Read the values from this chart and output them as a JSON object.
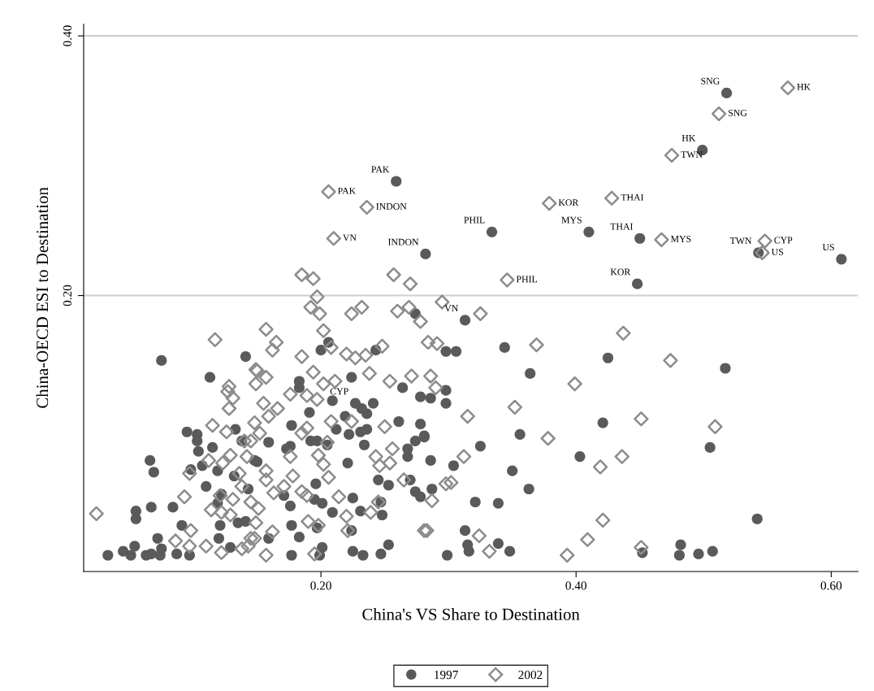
{
  "chart_data": {
    "type": "scatter",
    "xlabel": "China's VS Share to Destination",
    "ylabel": "China-OECD ESI to Destination",
    "xlim": [
      0.014,
      0.621
    ],
    "ylim": [
      -0.0125,
      0.409
    ],
    "xticks": [
      {
        "value": 0.2,
        "label": "0.20"
      },
      {
        "value": 0.4,
        "label": "0.40"
      },
      {
        "value": 0.6,
        "label": "0.60"
      }
    ],
    "yticks": [
      {
        "value": 0.2,
        "label": "0.20"
      },
      {
        "value": 0.4,
        "label": "0.40"
      }
    ],
    "grid": "y",
    "legend": "bottom",
    "series": [
      {
        "name": "1997",
        "color": "#5a5a5a",
        "marker": "circle",
        "x": [
          0.518,
          0.499,
          0.259,
          0.334,
          0.41,
          0.45,
          0.282,
          0.543,
          0.608,
          0.448,
          0.313,
          0.227,
          0.298,
          0.306,
          0.344,
          0.425,
          0.517,
          0.364,
          0.298,
          0.286,
          0.298,
          0.421,
          0.356,
          0.325,
          0.281,
          0.505,
          0.286,
          0.304,
          0.35,
          0.403,
          0.363,
          0.287,
          0.321,
          0.339,
          0.542,
          0.313,
          0.315,
          0.339,
          0.316,
          0.348,
          0.299,
          0.452,
          0.482,
          0.481,
          0.496,
          0.507,
          0.075,
          0.141,
          0.113,
          0.095,
          0.103,
          0.103,
          0.104,
          0.115,
          0.066,
          0.069,
          0.098,
          0.107,
          0.119,
          0.132,
          0.133,
          0.138,
          0.11,
          0.122,
          0.143,
          0.119,
          0.067,
          0.055,
          0.055,
          0.084,
          0.091,
          0.121,
          0.12,
          0.135,
          0.141,
          0.072,
          0.054,
          0.045,
          0.051,
          0.033,
          0.063,
          0.067,
          0.075,
          0.074,
          0.087,
          0.097,
          0.129,
          0.148,
          0.274,
          0.2,
          0.206,
          0.243,
          0.224,
          0.183,
          0.183,
          0.209,
          0.191,
          0.241,
          0.236,
          0.232,
          0.219,
          0.261,
          0.264,
          0.278,
          0.278,
          0.177,
          0.212,
          0.222,
          0.231,
          0.236,
          0.159,
          0.192,
          0.197,
          0.205,
          0.234,
          0.173,
          0.176,
          0.268,
          0.268,
          0.274,
          0.281,
          0.15,
          0.221,
          0.245,
          0.253,
          0.27,
          0.274,
          0.278,
          0.196,
          0.195,
          0.201,
          0.171,
          0.176,
          0.225,
          0.209,
          0.231,
          0.248,
          0.247,
          0.177,
          0.183,
          0.159,
          0.197,
          0.224,
          0.201,
          0.199,
          0.177,
          0.225,
          0.233,
          0.247,
          0.253
        ],
        "values": [
          0.356,
          0.312,
          0.288,
          0.249,
          0.249,
          0.244,
          0.232,
          0.233,
          0.228,
          0.209,
          0.181,
          0.117,
          0.157,
          0.157,
          0.16,
          0.152,
          0.144,
          0.14,
          0.127,
          0.121,
          0.117,
          0.102,
          0.093,
          0.084,
          0.091,
          0.083,
          0.073,
          0.069,
          0.065,
          0.076,
          0.051,
          0.051,
          0.041,
          0.04,
          0.028,
          0.019,
          0.008,
          0.009,
          0.003,
          0.003,
          0.0,
          0.002,
          0.008,
          0.0,
          0.001,
          0.003,
          0.15,
          0.153,
          0.137,
          0.095,
          0.093,
          0.088,
          0.08,
          0.083,
          0.073,
          0.064,
          0.066,
          0.069,
          0.065,
          0.061,
          0.097,
          0.088,
          0.053,
          0.047,
          0.051,
          0.04,
          0.037,
          0.034,
          0.028,
          0.037,
          0.023,
          0.023,
          0.013,
          0.025,
          0.026,
          0.013,
          0.007,
          0.003,
          0.0,
          0.0,
          0.0,
          0.001,
          0.005,
          0.0,
          0.001,
          0.0,
          0.006,
          0.073,
          0.186,
          0.158,
          0.164,
          0.158,
          0.137,
          0.134,
          0.129,
          0.119,
          0.11,
          0.117,
          0.109,
          0.113,
          0.107,
          0.103,
          0.129,
          0.122,
          0.101,
          0.1,
          0.097,
          0.093,
          0.095,
          0.097,
          0.087,
          0.088,
          0.088,
          0.085,
          0.085,
          0.082,
          0.084,
          0.082,
          0.076,
          0.088,
          0.092,
          0.072,
          0.071,
          0.058,
          0.054,
          0.058,
          0.049,
          0.045,
          0.055,
          0.043,
          0.04,
          0.046,
          0.038,
          0.044,
          0.033,
          0.034,
          0.031,
          0.041,
          0.023,
          0.014,
          0.013,
          0.021,
          0.019,
          0.006,
          0.0,
          0.0,
          0.003,
          0.0,
          0.001,
          0.008
        ]
      },
      {
        "name": "2002",
        "color": "#8c8c8c",
        "marker": "diamond",
        "x": [
          0.566,
          0.512,
          0.475,
          0.206,
          0.379,
          0.428,
          0.236,
          0.21,
          0.467,
          0.548,
          0.546,
          0.346,
          0.295,
          0.325,
          0.437,
          0.369,
          0.284,
          0.291,
          0.474,
          0.399,
          0.286,
          0.29,
          0.352,
          0.315,
          0.451,
          0.509,
          0.378,
          0.312,
          0.436,
          0.419,
          0.298,
          0.302,
          0.287,
          0.421,
          0.409,
          0.283,
          0.324,
          0.332,
          0.393,
          0.451,
          0.024,
          0.117,
          0.149,
          0.149,
          0.128,
          0.127,
          0.131,
          0.128,
          0.115,
          0.126,
          0.148,
          0.14,
          0.145,
          0.129,
          0.142,
          0.123,
          0.112,
          0.097,
          0.136,
          0.138,
          0.121,
          0.093,
          0.131,
          0.145,
          0.114,
          0.122,
          0.129,
          0.149,
          0.098,
          0.086,
          0.097,
          0.11,
          0.122,
          0.138,
          0.145,
          0.143,
          0.197,
          0.192,
          0.199,
          0.224,
          0.232,
          0.26,
          0.269,
          0.278,
          0.157,
          0.165,
          0.162,
          0.202,
          0.208,
          0.185,
          0.22,
          0.227,
          0.235,
          0.248,
          0.15,
          0.157,
          0.194,
          0.238,
          0.211,
          0.202,
          0.254,
          0.271,
          0.176,
          0.189,
          0.197,
          0.166,
          0.155,
          0.159,
          0.208,
          0.224,
          0.25,
          0.189,
          0.185,
          0.152,
          0.205,
          0.176,
          0.198,
          0.202,
          0.243,
          0.256,
          0.254,
          0.246,
          0.206,
          0.178,
          0.157,
          0.157,
          0.171,
          0.163,
          0.185,
          0.189,
          0.214,
          0.151,
          0.245,
          0.239,
          0.22,
          0.19,
          0.198,
          0.281,
          0.265,
          0.162,
          0.221,
          0.157,
          0.195,
          0.148,
          0.185,
          0.194,
          0.257,
          0.27
        ],
        "values": [
          0.36,
          0.34,
          0.308,
          0.28,
          0.271,
          0.275,
          0.268,
          0.244,
          0.243,
          0.242,
          0.233,
          0.212,
          0.195,
          0.186,
          0.171,
          0.162,
          0.164,
          0.163,
          0.15,
          0.132,
          0.138,
          0.129,
          0.114,
          0.107,
          0.105,
          0.099,
          0.09,
          0.076,
          0.076,
          0.068,
          0.055,
          0.056,
          0.042,
          0.027,
          0.012,
          0.019,
          0.015,
          0.003,
          0.0,
          0.006,
          0.032,
          0.166,
          0.143,
          0.132,
          0.13,
          0.126,
          0.121,
          0.113,
          0.1,
          0.095,
          0.102,
          0.088,
          0.088,
          0.077,
          0.076,
          0.071,
          0.073,
          0.063,
          0.063,
          0.053,
          0.046,
          0.045,
          0.043,
          0.041,
          0.035,
          0.033,
          0.031,
          0.025,
          0.019,
          0.011,
          0.007,
          0.007,
          0.002,
          0.005,
          0.013,
          0.007,
          0.199,
          0.191,
          0.186,
          0.186,
          0.191,
          0.188,
          0.191,
          0.18,
          0.174,
          0.164,
          0.158,
          0.173,
          0.16,
          0.153,
          0.155,
          0.152,
          0.154,
          0.161,
          0.142,
          0.137,
          0.141,
          0.14,
          0.134,
          0.132,
          0.134,
          0.138,
          0.124,
          0.123,
          0.12,
          0.113,
          0.117,
          0.107,
          0.103,
          0.103,
          0.099,
          0.098,
          0.094,
          0.094,
          0.087,
          0.076,
          0.077,
          0.07,
          0.076,
          0.082,
          0.071,
          0.069,
          0.06,
          0.061,
          0.065,
          0.058,
          0.053,
          0.048,
          0.049,
          0.046,
          0.045,
          0.036,
          0.041,
          0.033,
          0.03,
          0.026,
          0.023,
          0.019,
          0.058,
          0.018,
          0.019,
          0.0,
          0.001,
          0.013,
          0.216,
          0.213,
          0.216,
          0.209
        ]
      }
    ],
    "annotations": [
      {
        "text": "SNG",
        "x": 0.518,
        "y": 0.356
      },
      {
        "text": "HK",
        "x": 0.499,
        "y": 0.312
      },
      {
        "text": "PAK",
        "x": 0.259,
        "y": 0.288
      },
      {
        "text": "PHIL",
        "x": 0.334,
        "y": 0.249
      },
      {
        "text": "MYS",
        "x": 0.41,
        "y": 0.249
      },
      {
        "text": "THAI",
        "x": 0.45,
        "y": 0.244
      },
      {
        "text": "INDON",
        "x": 0.282,
        "y": 0.232
      },
      {
        "text": "TWN",
        "x": 0.543,
        "y": 0.233
      },
      {
        "text": "US",
        "x": 0.608,
        "y": 0.228
      },
      {
        "text": "KOR",
        "x": 0.448,
        "y": 0.209
      },
      {
        "text": "VN",
        "x": 0.313,
        "y": 0.181
      },
      {
        "text": "CYP",
        "x": 0.227,
        "y": 0.117
      },
      {
        "text": "HK",
        "x": 0.566,
        "y": 0.36
      },
      {
        "text": "SNG",
        "x": 0.512,
        "y": 0.34
      },
      {
        "text": "TWN",
        "x": 0.475,
        "y": 0.308
      },
      {
        "text": "PAK",
        "x": 0.206,
        "y": 0.28
      },
      {
        "text": "KOR",
        "x": 0.379,
        "y": 0.271
      },
      {
        "text": "THAI",
        "x": 0.428,
        "y": 0.275
      },
      {
        "text": "INDON",
        "x": 0.236,
        "y": 0.268
      },
      {
        "text": "VN",
        "x": 0.21,
        "y": 0.244
      },
      {
        "text": "MYS",
        "x": 0.467,
        "y": 0.243
      },
      {
        "text": "CYP",
        "x": 0.548,
        "y": 0.242
      },
      {
        "text": "US",
        "x": 0.546,
        "y": 0.233
      },
      {
        "text": "PHIL",
        "x": 0.346,
        "y": 0.212
      }
    ]
  }
}
